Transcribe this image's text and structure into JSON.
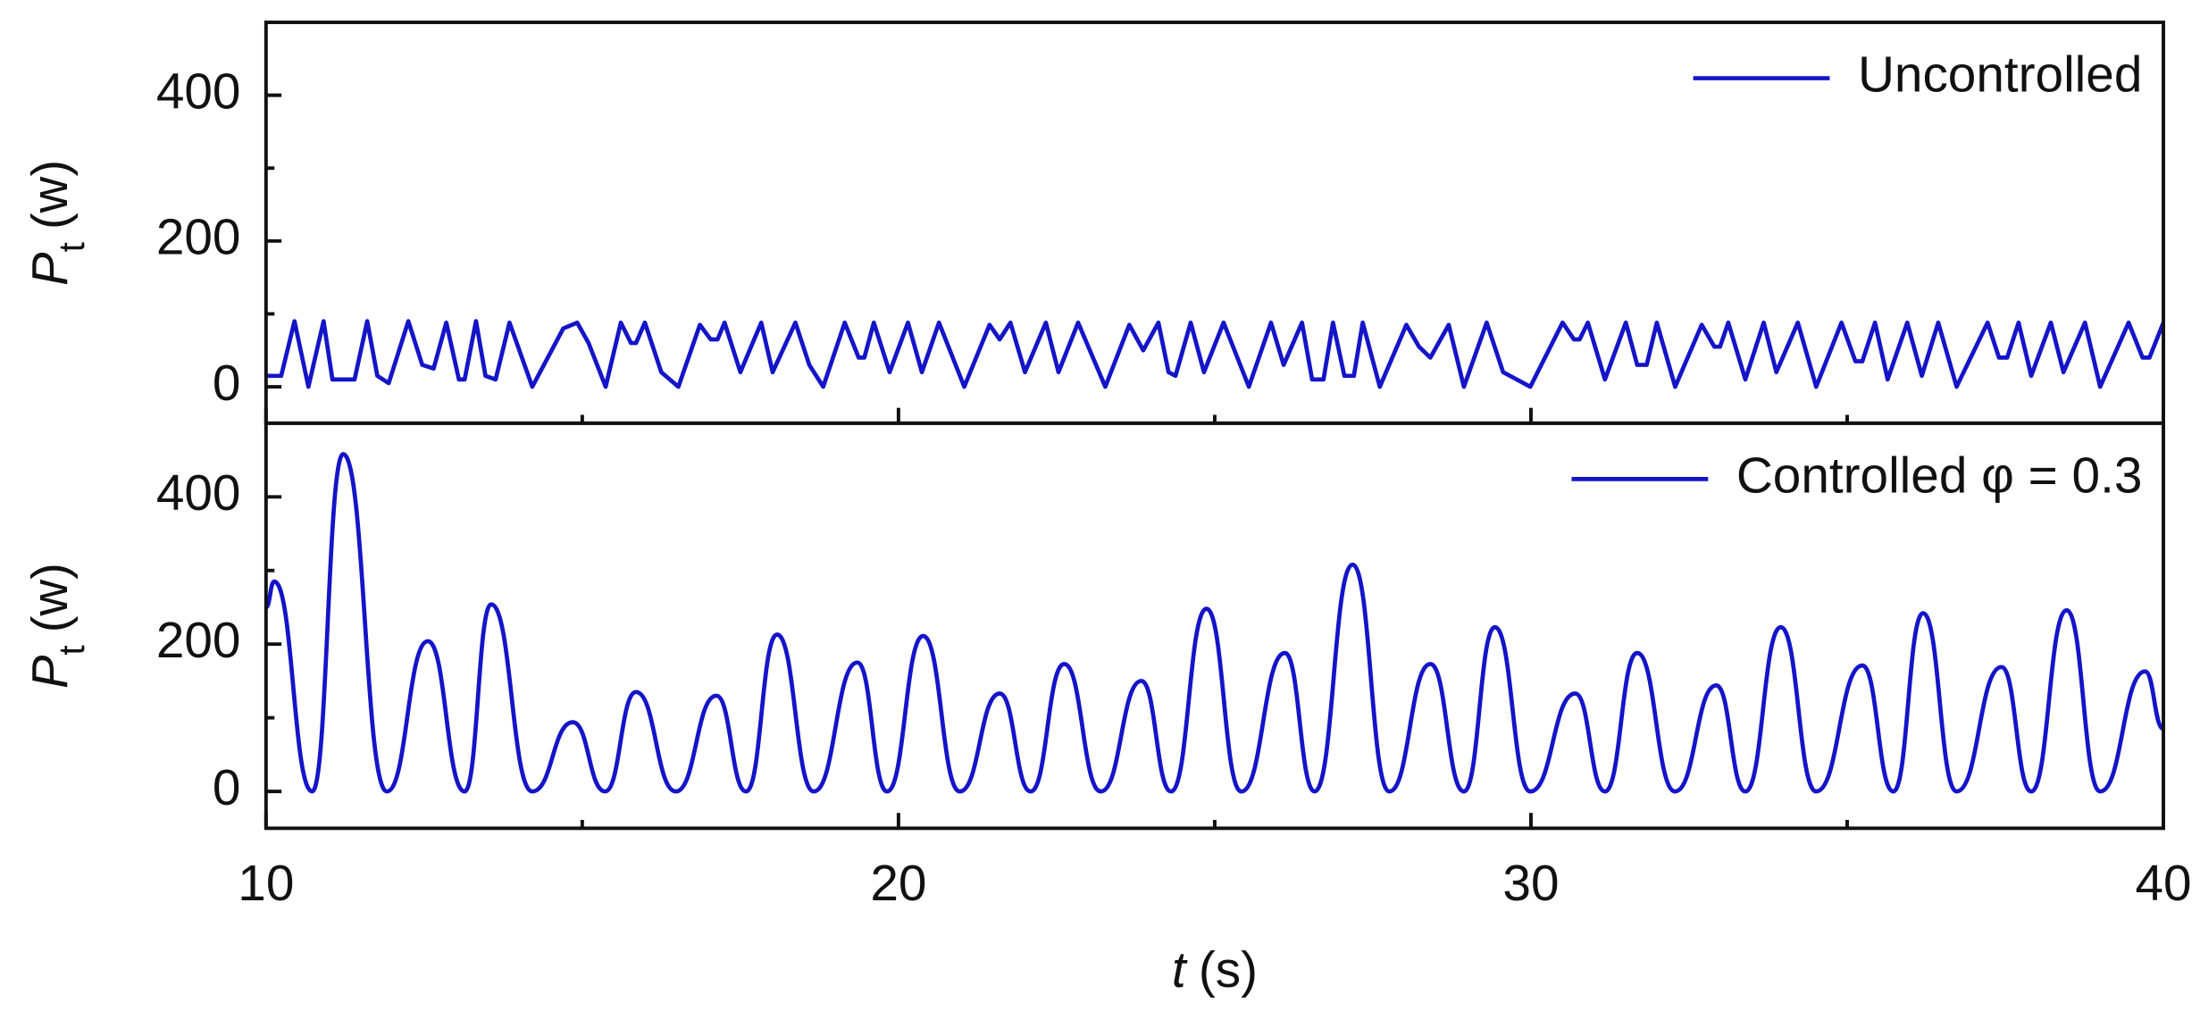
{
  "chart_data": [
    {
      "type": "line",
      "legend_position": "upper right",
      "ylabel": {
        "symbol": "P",
        "subscript": "t",
        "unit": "(w)"
      },
      "xlim": [
        10,
        40
      ],
      "ylim": [
        -50,
        500
      ],
      "yticks": [
        0,
        200,
        400
      ],
      "yminorticks": [
        100,
        300
      ],
      "series": [
        {
          "name": "Uncontrolled",
          "color": "#1414c8",
          "x": [
            10.0,
            10.24,
            10.45,
            10.67,
            10.91,
            11.05,
            11.4,
            11.6,
            11.76,
            11.94,
            12.25,
            12.47,
            12.65,
            12.85,
            13.05,
            13.14,
            13.32,
            13.47,
            13.63,
            13.85,
            14.21,
            14.7,
            14.92,
            15.1,
            15.37,
            15.61,
            15.77,
            15.85,
            15.99,
            16.25,
            16.52,
            16.86,
            17.03,
            17.14,
            17.25,
            17.5,
            17.83,
            18.01,
            18.37,
            18.59,
            18.81,
            19.15,
            19.37,
            19.46,
            19.61,
            19.86,
            20.15,
            20.37,
            20.64,
            21.04,
            21.44,
            21.6,
            21.77,
            22.0,
            22.33,
            22.53,
            22.84,
            23.27,
            23.65,
            23.87,
            24.11,
            24.27,
            24.38,
            24.62,
            24.83,
            25.14,
            25.54,
            25.89,
            26.09,
            26.38,
            26.54,
            26.72,
            26.87,
            27.05,
            27.2,
            27.34,
            27.61,
            28.03,
            28.23,
            28.41,
            28.7,
            28.94,
            29.3,
            29.56,
            29.99,
            30.5,
            30.68,
            30.77,
            30.9,
            31.17,
            31.5,
            31.68,
            31.83,
            31.99,
            32.28,
            32.7,
            32.9,
            32.99,
            33.12,
            33.39,
            33.68,
            33.88,
            34.22,
            34.51,
            34.91,
            35.13,
            35.24,
            35.44,
            35.64,
            35.95,
            36.18,
            36.44,
            36.73,
            37.22,
            37.4,
            37.53,
            37.71,
            37.91,
            38.22,
            38.42,
            38.76,
            39.0,
            39.45,
            39.67,
            39.78,
            40.0
          ],
          "values": [
            15,
            15,
            90,
            0,
            90,
            10,
            10,
            90,
            15,
            5,
            90,
            30,
            25,
            88,
            10,
            10,
            90,
            15,
            10,
            88,
            0,
            80,
            88,
            60,
            0,
            88,
            60,
            60,
            88,
            20,
            0,
            85,
            65,
            65,
            88,
            20,
            88,
            20,
            88,
            30,
            0,
            88,
            40,
            40,
            88,
            20,
            88,
            20,
            88,
            0,
            85,
            65,
            88,
            20,
            88,
            20,
            88,
            0,
            85,
            50,
            88,
            20,
            15,
            88,
            20,
            88,
            0,
            88,
            30,
            88,
            10,
            10,
            88,
            15,
            15,
            88,
            0,
            85,
            55,
            40,
            85,
            0,
            88,
            20,
            0,
            88,
            65,
            65,
            88,
            10,
            88,
            30,
            30,
            88,
            0,
            85,
            55,
            55,
            88,
            10,
            88,
            20,
            88,
            0,
            88,
            35,
            35,
            88,
            10,
            88,
            15,
            88,
            0,
            88,
            40,
            40,
            88,
            15,
            88,
            20,
            88,
            0,
            88,
            40,
            40,
            88
          ]
        }
      ]
    },
    {
      "type": "line",
      "legend_position": "upper right",
      "smooth": true,
      "ylabel": {
        "symbol": "P",
        "subscript": "t",
        "unit": "(w)"
      },
      "xlabel": {
        "symbol": "t",
        "unit": "(s)"
      },
      "xlim": [
        10,
        40
      ],
      "xticks": [
        10,
        20,
        30,
        40
      ],
      "xminorticks": [
        15,
        25,
        35
      ],
      "ylim": [
        -50,
        500
      ],
      "yticks": [
        0,
        200,
        400
      ],
      "yminorticks": [
        100,
        300
      ],
      "series": [
        {
          "name": "Controlled φ = 0.3",
          "color": "#1414c8",
          "x": [
            10.0,
            10.13,
            10.73,
            11.22,
            11.91,
            12.56,
            13.14,
            13.56,
            14.21,
            14.85,
            15.36,
            15.85,
            16.48,
            17.12,
            17.59,
            18.08,
            18.66,
            19.35,
            19.82,
            20.39,
            20.97,
            21.6,
            22.09,
            22.62,
            23.2,
            23.84,
            24.31,
            24.87,
            25.42,
            26.11,
            26.58,
            27.18,
            27.76,
            28.41,
            28.94,
            29.43,
            29.99,
            30.7,
            31.17,
            31.68,
            32.28,
            32.93,
            33.39,
            33.95,
            34.51,
            35.24,
            35.73,
            36.2,
            36.73,
            37.44,
            37.91,
            38.47,
            39.0,
            39.71,
            40.0
          ],
          "values": [
            250,
            285,
            0,
            458,
            0,
            204,
            0,
            254,
            0,
            94,
            0,
            135,
            0,
            130,
            0,
            213,
            0,
            175,
            0,
            211,
            0,
            133,
            0,
            173,
            0,
            150,
            0,
            248,
            0,
            188,
            0,
            308,
            0,
            173,
            0,
            223,
            0,
            133,
            0,
            188,
            0,
            144,
            0,
            223,
            0,
            171,
            0,
            242,
            0,
            169,
            0,
            246,
            0,
            163,
            85
          ]
        }
      ]
    }
  ]
}
